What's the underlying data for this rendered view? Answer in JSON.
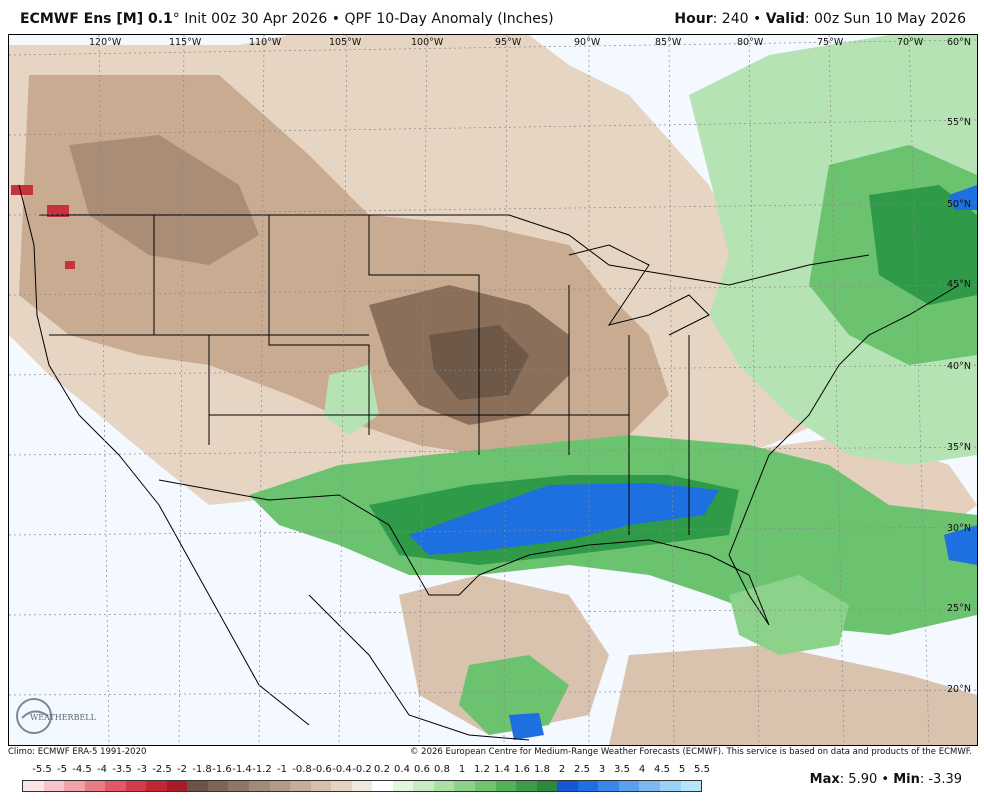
{
  "header": {
    "model": "ECMWF Ens [M] 0.1",
    "deg": "°",
    "init": " Init 00z 30 Apr 2026",
    "sep": " • ",
    "product": "QPF 10-Day Anomaly (Inches)",
    "hour_label": "Hour",
    "hour_value": ": 240",
    "valid_sep": " • ",
    "valid_label": "Valid",
    "valid_value": ": 00z Sun 10 May 2026"
  },
  "map": {
    "lon_labels": [
      "120°W",
      "115°W",
      "110°W",
      "105°W",
      "100°W",
      "95°W",
      "90°W",
      "85°W",
      "80°W",
      "75°W",
      "70°W"
    ],
    "lat_labels": [
      "60°N",
      "55°N",
      "50°N",
      "45°N",
      "40°N",
      "35°N",
      "30°N",
      "25°N",
      "20°N"
    ],
    "logo_text": "WEATHERBELL",
    "colors": {
      "ocean_bg": "#f4f8ff",
      "dry_light": "#e7d5c4",
      "dry_mid": "#c9ab92",
      "dry_dark": "#8a6f5b",
      "dry_darkest": "#6e5848",
      "wet_light": "#b6e3b4",
      "wet_mid": "#6bc36f",
      "wet_dark": "#2f9a47",
      "wet_blue": "#1e6fe0",
      "extreme_red": "#c8323c"
    }
  },
  "credits": {
    "left": "Climo: ECMWF ERA-5 1991-2020",
    "right": "© 2026 European Centre for Medium-Range Weather Forecasts (ECMWF). This service is based on data and products of the ECMWF."
  },
  "scale": {
    "labels": [
      "-5.5",
      "-5",
      "-4.5",
      "-4",
      "-3.5",
      "-3",
      "-2.5",
      "-2",
      "-1.8",
      "-1.6",
      "-1.4",
      "-1.2",
      "-1",
      "-0.8",
      "-0.6",
      "-0.4",
      "-0.2",
      "0.2",
      "0.4",
      "0.6",
      "0.8",
      "1",
      "1.2",
      "1.4",
      "1.6",
      "1.8",
      "2",
      "2.5",
      "3",
      "3.5",
      "4",
      "4.5",
      "5",
      "5.5"
    ],
    "colors": [
      "#fde4e6",
      "#f8c6ca",
      "#f2a3aa",
      "#ea7c86",
      "#e05a66",
      "#d23c4a",
      "#c02833",
      "#a81c27",
      "#6b5347",
      "#7d6557",
      "#8e7766",
      "#a08a78",
      "#b29c89",
      "#c4ae9b",
      "#d5c1ae",
      "#e5d4c3",
      "#f2e8de",
      "#ffffff",
      "#e3f4df",
      "#c8ebc3",
      "#aadfa6",
      "#8dd28a",
      "#6fc46f",
      "#53b35a",
      "#3c9e4b",
      "#2b8a3e",
      "#1557d0",
      "#1e6fe0",
      "#3a87ea",
      "#5aa0f0",
      "#7bb8f4",
      "#9bd0f7",
      "#b8e4fa"
    ]
  },
  "stats": {
    "max_label": "Max",
    "max_value": ": 5.90",
    "sep": " • ",
    "min_label": "Min",
    "min_value": ": -3.39"
  }
}
